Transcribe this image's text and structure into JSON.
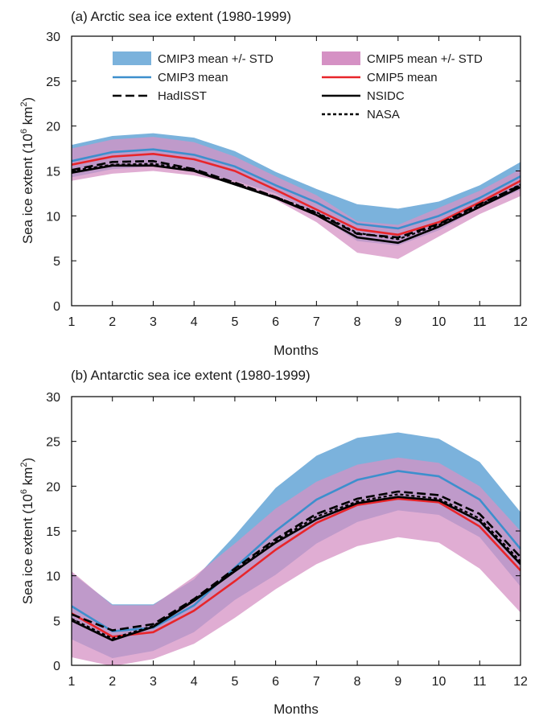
{
  "chart_data": [
    {
      "type": "area",
      "title": "(a) Arctic sea ice extent (1980-1999)",
      "xlabel": "Months",
      "ylabel": "Sea ice extent (10⁶ km²)",
      "ylabel_parts": {
        "a": "Sea ice extent (10",
        "b": "6",
        "c": " km",
        "d": "2",
        "e": ")"
      },
      "xlim": [
        1,
        12
      ],
      "ylim": [
        0,
        30
      ],
      "x": [
        1,
        2,
        3,
        4,
        5,
        6,
        7,
        8,
        9,
        10,
        11,
        12
      ],
      "xticks": [
        "1",
        "2",
        "3",
        "4",
        "5",
        "6",
        "7",
        "8",
        "9",
        "10",
        "11",
        "12"
      ],
      "yticks": [
        "0",
        "5",
        "10",
        "15",
        "20",
        "25",
        "30"
      ],
      "bands": [
        {
          "name": "CMIP3 mean +/- STD",
          "color": "#7bb2dc",
          "lower": [
            14.3,
            15.2,
            15.5,
            14.9,
            13.9,
            12.5,
            10.2,
            7.2,
            6.7,
            8.4,
            10.9,
            12.9
          ],
          "upper": [
            17.9,
            18.9,
            19.2,
            18.7,
            17.2,
            14.9,
            13.0,
            11.3,
            10.8,
            11.6,
            13.4,
            16.0
          ]
        },
        {
          "name": "CMIP5 mean +/- STD",
          "color": "#d591c4",
          "lower": [
            13.9,
            14.7,
            15.0,
            14.5,
            13.6,
            11.8,
            9.3,
            5.9,
            5.2,
            7.7,
            10.2,
            12.2
          ],
          "upper": [
            17.5,
            18.5,
            18.8,
            18.2,
            16.6,
            14.4,
            12.3,
            9.4,
            9.0,
            10.9,
            12.8,
            15.2
          ]
        }
      ],
      "series": [
        {
          "name": "CMIP3 mean",
          "style": "solid",
          "color": "#3d8fcd",
          "values": [
            16.1,
            17.1,
            17.4,
            16.8,
            15.5,
            13.4,
            11.5,
            9.1,
            8.6,
            10.0,
            12.0,
            14.4
          ]
        },
        {
          "name": "CMIP5 mean",
          "style": "solid",
          "color": "#e8252a",
          "values": [
            15.7,
            16.6,
            16.9,
            16.3,
            15.0,
            12.9,
            10.7,
            8.5,
            7.9,
            9.3,
            11.5,
            13.9
          ]
        },
        {
          "name": "HadISST",
          "style": "dashed",
          "color": "#000000",
          "values": [
            15.1,
            16.0,
            16.1,
            15.2,
            13.7,
            12.1,
            10.3,
            8.0,
            7.6,
            9.1,
            11.3,
            13.4
          ]
        },
        {
          "name": "NSIDC",
          "style": "solid",
          "color": "#000000",
          "values": [
            14.8,
            15.6,
            15.6,
            15.0,
            13.5,
            12.0,
            10.1,
            7.6,
            7.0,
            8.8,
            11.0,
            13.2
          ]
        },
        {
          "name": "NASA",
          "style": "dotted",
          "color": "#000000",
          "values": [
            15.0,
            15.7,
            15.8,
            15.1,
            13.6,
            12.1,
            10.4,
            8.1,
            7.4,
            9.0,
            11.2,
            13.5
          ]
        }
      ],
      "legend": {
        "placement": "top",
        "items": [
          {
            "label": "CMIP3 mean +/- STD",
            "kind": "patch",
            "color": "#7bb2dc"
          },
          {
            "label": "CMIP5 mean +/- STD",
            "kind": "patch",
            "color": "#d591c4"
          },
          {
            "label": "CMIP3 mean",
            "kind": "line",
            "style": "solid",
            "color": "#3d8fcd"
          },
          {
            "label": "CMIP5 mean",
            "kind": "line",
            "style": "solid",
            "color": "#e8252a"
          },
          {
            "label": "HadISST",
            "kind": "line",
            "style": "dashed",
            "color": "#000000"
          },
          {
            "label": "NSIDC",
            "kind": "line",
            "style": "solid",
            "color": "#000000"
          },
          {
            "label": "NASA",
            "kind": "line",
            "style": "dotted",
            "color": "#000000"
          }
        ]
      }
    },
    {
      "type": "area",
      "title": "(b) Antarctic sea ice extent (1980-1999)",
      "xlabel": "Months",
      "ylabel": "Sea ice extent (10⁶ km²)",
      "ylabel_parts": {
        "a": "Sea ice extent (10",
        "b": "6",
        "c": " km",
        "d": "2",
        "e": ")"
      },
      "xlim": [
        1,
        12
      ],
      "ylim": [
        0,
        30
      ],
      "x": [
        1,
        2,
        3,
        4,
        5,
        6,
        7,
        8,
        9,
        10,
        11,
        12
      ],
      "xticks": [
        "1",
        "2",
        "3",
        "4",
        "5",
        "6",
        "7",
        "8",
        "9",
        "10",
        "11",
        "12"
      ],
      "yticks": [
        "0",
        "5",
        "10",
        "15",
        "20",
        "25",
        "30"
      ],
      "bands": [
        {
          "name": "CMIP3 mean +/- STD",
          "color": "#7bb2dc",
          "lower": [
            2.9,
            0.8,
            1.6,
            3.7,
            7.3,
            10.1,
            13.6,
            16.0,
            17.3,
            16.8,
            14.3,
            8.8
          ],
          "upper": [
            10.3,
            6.8,
            6.8,
            9.6,
            14.5,
            19.8,
            23.4,
            25.4,
            26.0,
            25.3,
            22.7,
            17.1
          ]
        },
        {
          "name": "CMIP5 mean +/- STD",
          "color": "#d591c4",
          "lower": [
            0.9,
            -0.1,
            0.7,
            2.4,
            5.3,
            8.5,
            11.3,
            13.3,
            14.3,
            13.7,
            10.8,
            5.9
          ]
        },
        {
          "name": "CMIP5 upper",
          "color": "#d591c4",
          "upper": [
            10.5,
            6.7,
            6.7,
            9.9,
            13.6,
            17.5,
            20.5,
            22.4,
            23.2,
            22.6,
            20.0,
            15.0
          ]
        }
      ],
      "series": [
        {
          "name": "CMIP3 mean",
          "style": "solid",
          "color": "#3d8fcd",
          "values": [
            6.6,
            3.8,
            4.2,
            6.7,
            10.9,
            15.0,
            18.5,
            20.7,
            21.7,
            21.1,
            18.5,
            13.0
          ]
        },
        {
          "name": "CMIP5 mean",
          "style": "solid",
          "color": "#e8252a",
          "values": [
            5.8,
            3.2,
            3.7,
            6.1,
            9.4,
            12.9,
            15.9,
            17.9,
            18.6,
            18.2,
            15.5,
            10.6
          ]
        },
        {
          "name": "HadISST",
          "style": "dashed",
          "color": "#000000",
          "values": [
            5.7,
            3.9,
            4.6,
            7.4,
            10.8,
            14.1,
            16.9,
            18.6,
            19.4,
            19.0,
            16.9,
            12.1
          ]
        },
        {
          "name": "NSIDC",
          "style": "solid",
          "color": "#000000",
          "values": [
            5.0,
            2.8,
            4.3,
            7.2,
            10.5,
            13.7,
            16.3,
            18.1,
            18.8,
            18.4,
            16.1,
            11.3
          ]
        },
        {
          "name": "NASA",
          "style": "dotted",
          "color": "#000000",
          "values": [
            5.2,
            3.0,
            4.4,
            7.3,
            10.6,
            13.9,
            16.6,
            18.3,
            19.1,
            18.6,
            16.4,
            11.6
          ]
        }
      ]
    }
  ]
}
